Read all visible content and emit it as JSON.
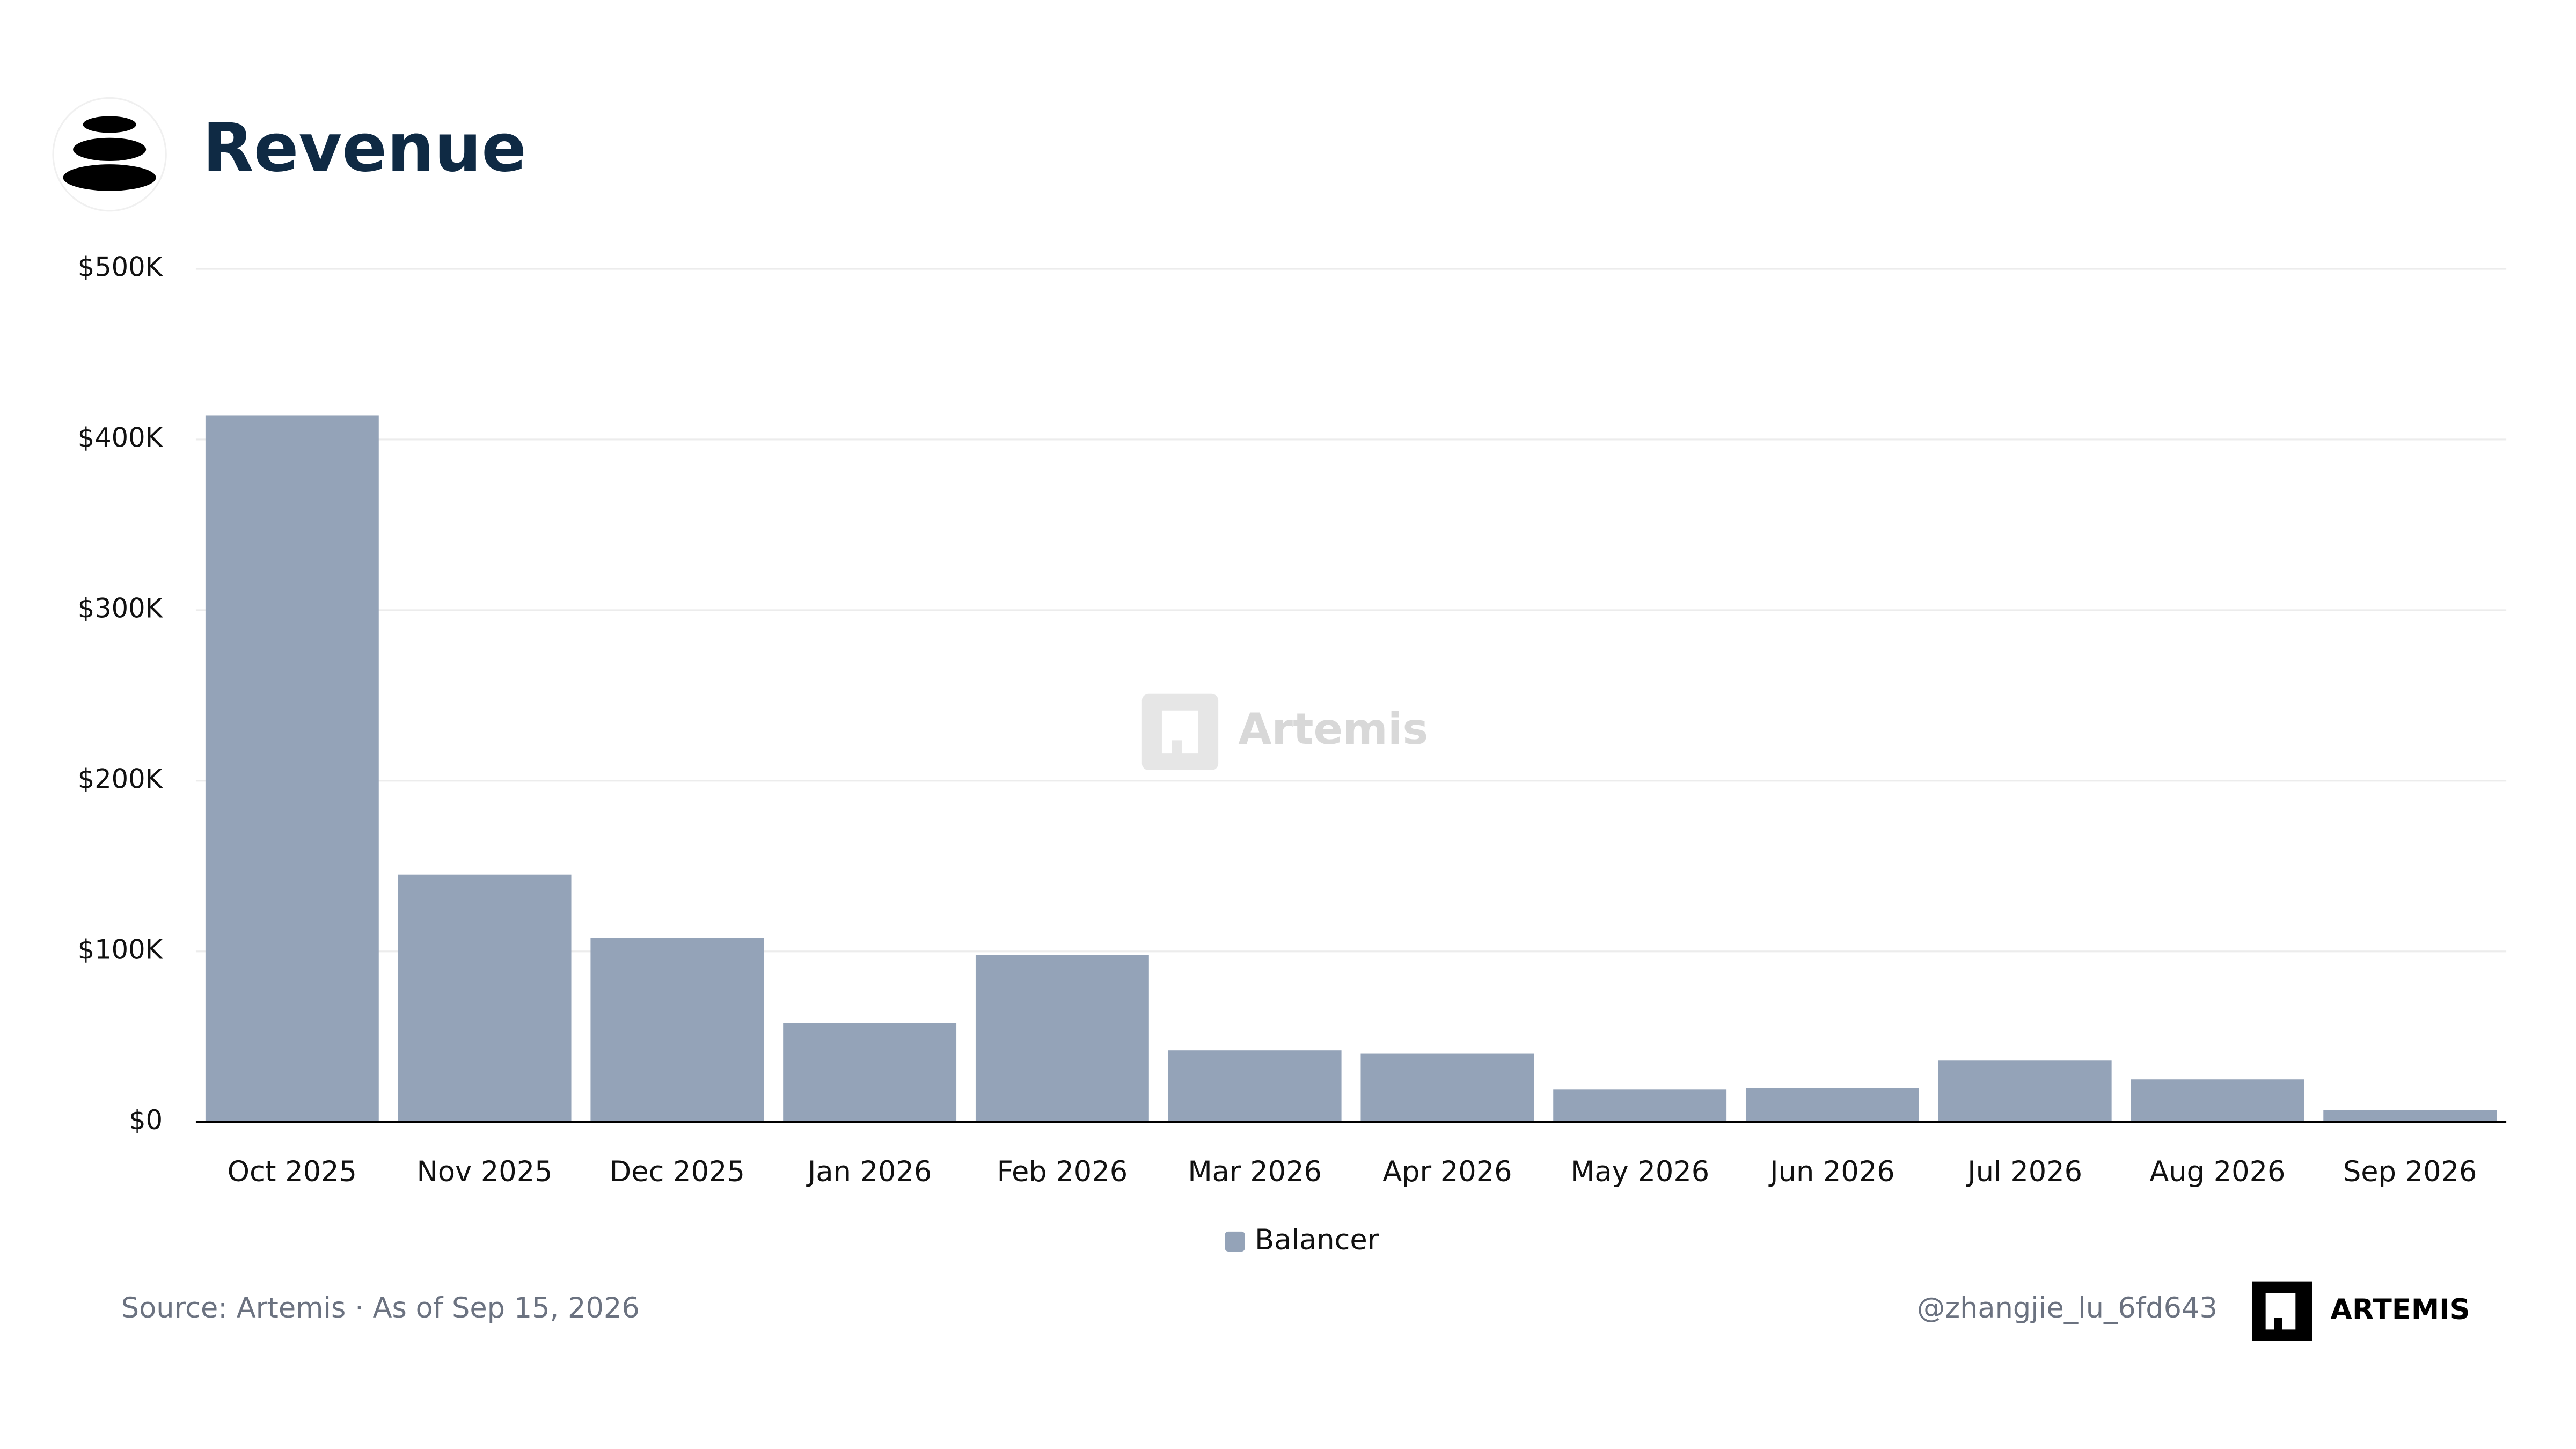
{
  "chart_data": {
    "type": "bar",
    "title": "Revenue",
    "categories": [
      "Oct 2025",
      "Nov 2025",
      "Dec 2025",
      "Jan 2026",
      "Feb 2026",
      "Mar 2026",
      "Apr 2026",
      "May 2026",
      "Jun 2026",
      "Jul 2026",
      "Aug 2026",
      "Sep 2026"
    ],
    "series": [
      {
        "name": "Balancer",
        "color": "#94a3b8",
        "values": [
          414000,
          145000,
          108000,
          58000,
          98000,
          42000,
          40000,
          19000,
          20000,
          36000,
          25000,
          7000
        ]
      }
    ],
    "ylim": [
      0,
      500000
    ],
    "yticks": [
      {
        "value": 0,
        "label": "$0"
      },
      {
        "value": 100000,
        "label": "$100K"
      },
      {
        "value": 200000,
        "label": "$200K"
      },
      {
        "value": 300000,
        "label": "$300K"
      },
      {
        "value": 400000,
        "label": "$400K"
      },
      {
        "value": 500000,
        "label": "$500K"
      }
    ],
    "grid": true,
    "legend": "bottom",
    "watermark": "Artemis",
    "source": "Source: Artemis · As of Sep 15, 2026",
    "handle": "@zhangjie_lu_6fd643",
    "brand": "ARTEMIS"
  }
}
